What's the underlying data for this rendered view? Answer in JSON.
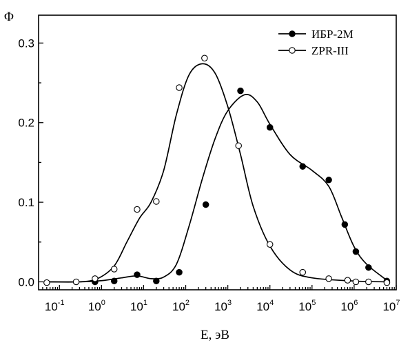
{
  "chart_data": {
    "type": "line",
    "ylabel": "Φ",
    "xlabel": "E, эВ",
    "x_scale": "log",
    "xlim": [
      0.032,
      10000000
    ],
    "ylim": [
      -0.01,
      0.335
    ],
    "x_tick_values": [
      0.1,
      1,
      10,
      100,
      1000,
      10000,
      100000,
      1000000,
      10000000
    ],
    "x_tick_labels": [
      {
        "base": "10",
        "exp": "-1"
      },
      {
        "base": "10",
        "exp": "0"
      },
      {
        "base": "10",
        "exp": "1"
      },
      {
        "base": "10",
        "exp": "2"
      },
      {
        "base": "10",
        "exp": "3"
      },
      {
        "base": "10",
        "exp": "4"
      },
      {
        "base": "10",
        "exp": "5"
      },
      {
        "base": "10",
        "exp": "6"
      },
      {
        "base": "10",
        "exp": "7"
      }
    ],
    "y_tick_values": [
      0.0,
      0.1,
      0.2,
      0.3
    ],
    "y_tick_labels": [
      "0.0",
      "0.1",
      "0.2",
      "0.3"
    ],
    "grid": false,
    "legend": "top-right",
    "series": [
      {
        "name": "ИБР-2М",
        "marker": "filled-circle",
        "color": "#000000",
        "points": [
          {
            "x": 0.7,
            "y": 0.0
          },
          {
            "x": 2.0,
            "y": 0.001
          },
          {
            "x": 7.0,
            "y": 0.009
          },
          {
            "x": 20.0,
            "y": 0.001
          },
          {
            "x": 70.0,
            "y": 0.012
          },
          {
            "x": 300.0,
            "y": 0.097
          },
          {
            "x": 2000.0,
            "y": 0.24
          },
          {
            "x": 10000.0,
            "y": 0.194
          },
          {
            "x": 60000.0,
            "y": 0.145
          },
          {
            "x": 250000.0,
            "y": 0.128
          },
          {
            "x": 600000.0,
            "y": 0.072
          },
          {
            "x": 1100000.0,
            "y": 0.038
          },
          {
            "x": 2200000.0,
            "y": 0.018
          },
          {
            "x": 6000000.0,
            "y": 0.001
          }
        ],
        "curve": [
          {
            "x": 0.05,
            "y": 0.0
          },
          {
            "x": 0.3,
            "y": 0.0
          },
          {
            "x": 1.0,
            "y": 0.0015
          },
          {
            "x": 3.0,
            "y": 0.005
          },
          {
            "x": 7.0,
            "y": 0.0075
          },
          {
            "x": 15.0,
            "y": 0.004
          },
          {
            "x": 30.0,
            "y": 0.006
          },
          {
            "x": 60.0,
            "y": 0.022
          },
          {
            "x": 120.0,
            "y": 0.07
          },
          {
            "x": 250.0,
            "y": 0.13
          },
          {
            "x": 500.0,
            "y": 0.18
          },
          {
            "x": 1000.0,
            "y": 0.215
          },
          {
            "x": 2500.0,
            "y": 0.235
          },
          {
            "x": 5000.0,
            "y": 0.226
          },
          {
            "x": 10000.0,
            "y": 0.198
          },
          {
            "x": 30000.0,
            "y": 0.16
          },
          {
            "x": 100000.0,
            "y": 0.14
          },
          {
            "x": 250000.0,
            "y": 0.12
          },
          {
            "x": 500000.0,
            "y": 0.082
          },
          {
            "x": 1000000.0,
            "y": 0.044
          },
          {
            "x": 2000000.0,
            "y": 0.022
          },
          {
            "x": 6000000.0,
            "y": 0.002
          }
        ]
      },
      {
        "name": "ZPR-III",
        "marker": "open-circle",
        "color": "#000000",
        "points": [
          {
            "x": 0.05,
            "y": -0.001
          },
          {
            "x": 0.25,
            "y": 0.0
          },
          {
            "x": 0.7,
            "y": 0.004
          },
          {
            "x": 2.0,
            "y": 0.016
          },
          {
            "x": 7.0,
            "y": 0.091
          },
          {
            "x": 20.0,
            "y": 0.101
          },
          {
            "x": 70.0,
            "y": 0.244
          },
          {
            "x": 280.0,
            "y": 0.281
          },
          {
            "x": 1800.0,
            "y": 0.171
          },
          {
            "x": 10000.0,
            "y": 0.047
          },
          {
            "x": 60000.0,
            "y": 0.012
          },
          {
            "x": 250000.0,
            "y": 0.004
          },
          {
            "x": 700000.0,
            "y": 0.002
          },
          {
            "x": 1100000.0,
            "y": 0.0
          },
          {
            "x": 2200000.0,
            "y": 0.0
          },
          {
            "x": 6000000.0,
            "y": -0.001
          }
        ],
        "curve": [
          {
            "x": 0.05,
            "y": 0.0
          },
          {
            "x": 0.3,
            "y": 0.0
          },
          {
            "x": 0.8,
            "y": 0.004
          },
          {
            "x": 2.0,
            "y": 0.02
          },
          {
            "x": 4.0,
            "y": 0.05
          },
          {
            "x": 8.0,
            "y": 0.08
          },
          {
            "x": 15.0,
            "y": 0.1
          },
          {
            "x": 30.0,
            "y": 0.14
          },
          {
            "x": 60.0,
            "y": 0.21
          },
          {
            "x": 120.0,
            "y": 0.26
          },
          {
            "x": 250.0,
            "y": 0.274
          },
          {
            "x": 500.0,
            "y": 0.262
          },
          {
            "x": 1000.0,
            "y": 0.22
          },
          {
            "x": 2000.0,
            "y": 0.16
          },
          {
            "x": 4000.0,
            "y": 0.095
          },
          {
            "x": 10000.0,
            "y": 0.045
          },
          {
            "x": 30000.0,
            "y": 0.015
          },
          {
            "x": 100000.0,
            "y": 0.005
          },
          {
            "x": 1000000.0,
            "y": 0.001
          },
          {
            "x": 6000000.0,
            "y": 0.0
          }
        ]
      }
    ]
  }
}
